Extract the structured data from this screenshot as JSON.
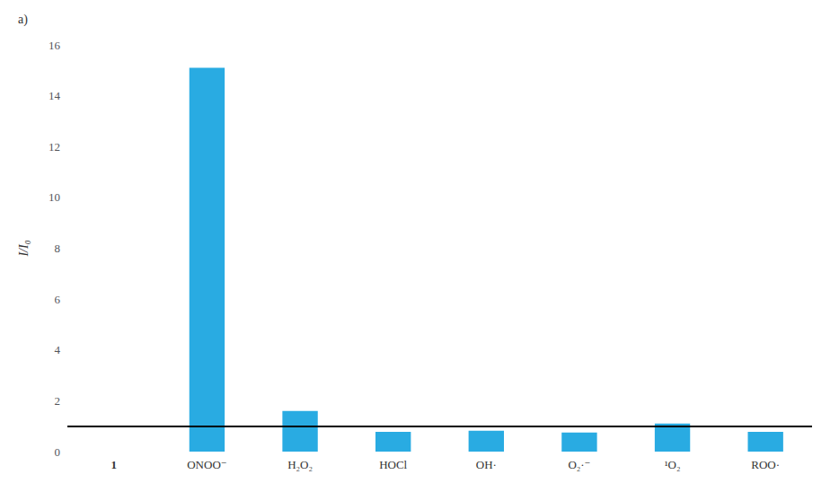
{
  "chart_data": {
    "type": "bar",
    "categories": [
      "1",
      "ONOO⁻",
      "H₂O₂",
      "HOCl",
      "OH·",
      "O₂·⁻",
      "¹O₂",
      "ROO·"
    ],
    "values": [
      0.0,
      15.1,
      1.6,
      0.78,
      0.82,
      0.75,
      1.1,
      0.78
    ],
    "color": "#29ABE2",
    "ylabel": "I/I₀",
    "ylim": [
      0,
      16
    ],
    "yticks": [
      0,
      2,
      4,
      6,
      8,
      10,
      12,
      14,
      16
    ],
    "reference_line": {
      "y": 1.0,
      "color": "#000000"
    },
    "annotation": "a)",
    "grid": false
  }
}
